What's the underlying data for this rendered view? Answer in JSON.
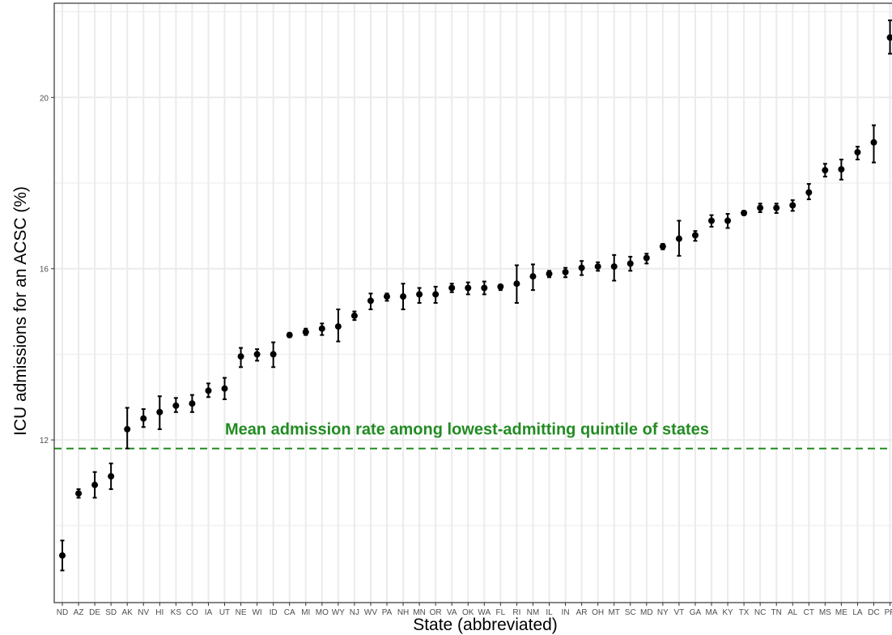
{
  "chart_data": {
    "type": "scatter",
    "title": "",
    "xlabel": "State (abbreviated)",
    "ylabel": "ICU admissions for an ACSC (%)",
    "ylim": [
      8.2,
      22.2
    ],
    "y_major_ticks": [
      12,
      16,
      20
    ],
    "y_minor_gridlines": [
      10,
      14,
      18,
      22
    ],
    "grid": true,
    "colors": {
      "points": "#000000",
      "reference_line": "#228B22",
      "grid": "#ebebeb",
      "panel_border": "#333333"
    },
    "reference_line": {
      "y": 11.8,
      "style": "dashed",
      "label": "Mean admission rate among lowest-admitting quintile of states"
    },
    "categories": [
      "ND",
      "AZ",
      "DE",
      "SD",
      "AK",
      "NV",
      "HI",
      "KS",
      "CO",
      "IA",
      "UT",
      "NE",
      "WI",
      "ID",
      "CA",
      "MI",
      "MO",
      "WY",
      "NJ",
      "WV",
      "PA",
      "NH",
      "MN",
      "OR",
      "VA",
      "OK",
      "WA",
      "FL",
      "RI",
      "NM",
      "IL",
      "IN",
      "AR",
      "OH",
      "MT",
      "SC",
      "MD",
      "NY",
      "VT",
      "GA",
      "MA",
      "KY",
      "TX",
      "NC",
      "TN",
      "AL",
      "CT",
      "MS",
      "ME",
      "LA",
      "DC",
      "PR"
    ],
    "series": [
      {
        "values": [
          9.3,
          10.75,
          10.95,
          11.15,
          12.25,
          12.5,
          12.65,
          12.8,
          12.85,
          13.15,
          13.2,
          13.95,
          14.0,
          14.0,
          14.45,
          14.52,
          14.6,
          14.65,
          14.9,
          15.25,
          15.35,
          15.35,
          15.4,
          15.4,
          15.55,
          15.55,
          15.55,
          15.58,
          15.65,
          15.82,
          15.88,
          15.92,
          16.02,
          16.05,
          16.05,
          16.12,
          16.25,
          16.52,
          16.7,
          16.78,
          17.12,
          17.12,
          17.3,
          17.42,
          17.42,
          17.48,
          17.78,
          18.3,
          18.32,
          18.72,
          18.95,
          21.4
        ],
        "lower": [
          8.95,
          10.65,
          10.65,
          10.85,
          11.8,
          12.3,
          12.25,
          12.65,
          12.65,
          13.0,
          12.95,
          13.7,
          13.85,
          13.7,
          14.4,
          14.45,
          14.45,
          14.3,
          14.8,
          15.05,
          15.25,
          15.05,
          15.2,
          15.2,
          15.45,
          15.4,
          15.4,
          15.5,
          15.2,
          15.5,
          15.8,
          15.8,
          15.85,
          15.95,
          15.72,
          15.95,
          16.12,
          16.45,
          16.3,
          16.65,
          16.98,
          16.95,
          17.25,
          17.32,
          17.3,
          17.35,
          17.62,
          18.15,
          18.08,
          18.55,
          18.48,
          21.02
        ],
        "upper": [
          9.65,
          10.85,
          11.25,
          11.45,
          12.75,
          12.72,
          13.02,
          12.98,
          13.05,
          13.32,
          13.45,
          14.15,
          14.12,
          14.28,
          14.5,
          14.6,
          14.72,
          15.05,
          15.0,
          15.42,
          15.42,
          15.65,
          15.55,
          15.58,
          15.65,
          15.68,
          15.7,
          15.62,
          16.08,
          16.1,
          15.95,
          16.02,
          16.18,
          16.15,
          16.32,
          16.28,
          16.35,
          16.58,
          17.12,
          16.88,
          17.25,
          17.28,
          17.35,
          17.52,
          17.52,
          17.6,
          17.98,
          18.45,
          18.55,
          18.85,
          19.35,
          21.8
        ]
      }
    ]
  }
}
